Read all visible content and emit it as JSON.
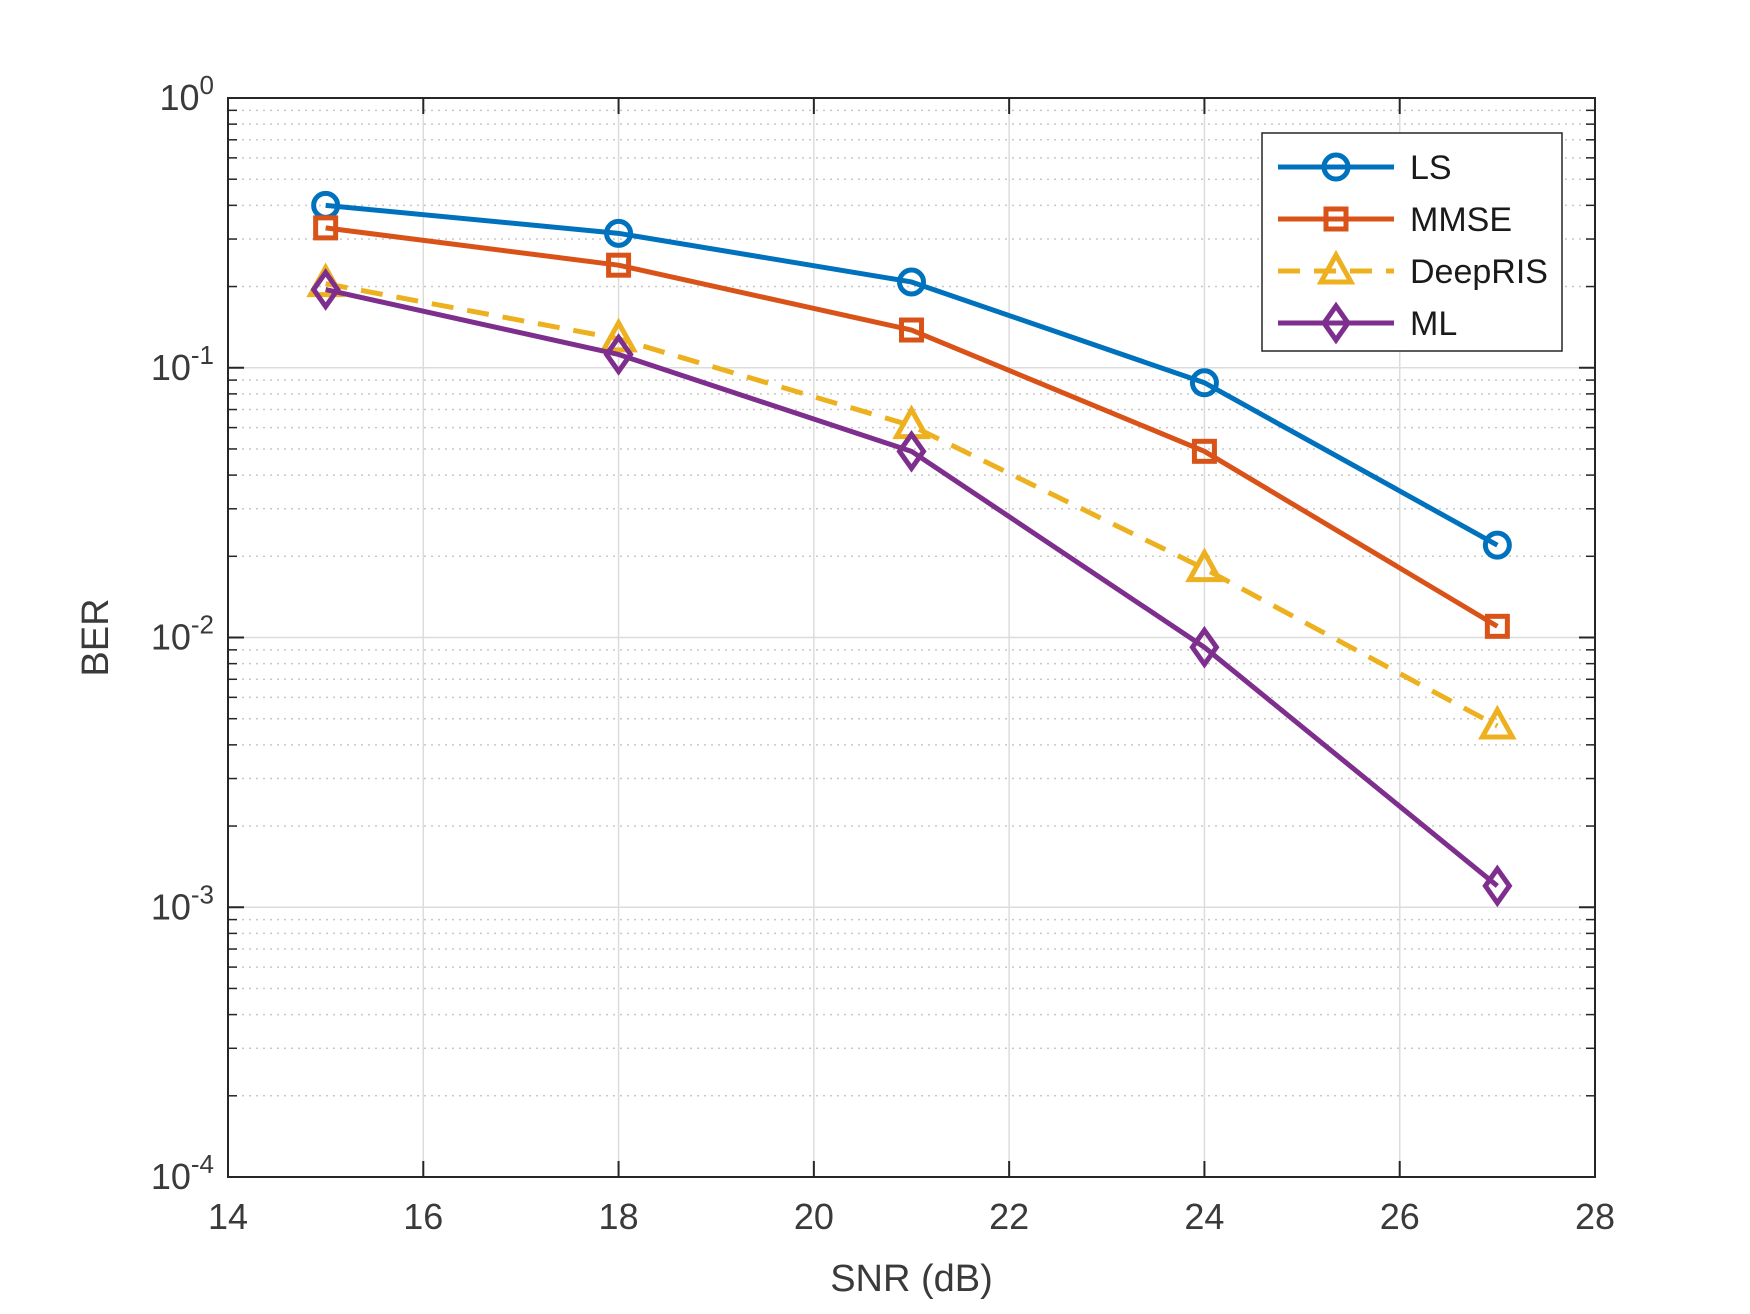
{
  "chart_data": {
    "type": "line",
    "title": "",
    "xlabel": "SNR (dB)",
    "ylabel": "BER",
    "yscale": "log",
    "xlim": [
      14,
      28
    ],
    "ylim": [
      0.0001,
      1
    ],
    "xticks": [
      14,
      16,
      18,
      20,
      22,
      24,
      26,
      28
    ],
    "yticks": [
      {
        "value": 0.0001,
        "base": "10",
        "exp": "-4"
      },
      {
        "value": 0.001,
        "base": "10",
        "exp": "-3"
      },
      {
        "value": 0.01,
        "base": "10",
        "exp": "-2"
      },
      {
        "value": 0.1,
        "base": "10",
        "exp": "-1"
      },
      {
        "value": 1,
        "base": "10",
        "exp": "0"
      }
    ],
    "grid": true,
    "minor_grid": true,
    "legend_position": "top-right",
    "x": [
      15,
      18,
      21,
      24,
      27
    ],
    "series": [
      {
        "name": "LS",
        "marker": "circle",
        "dash": "solid",
        "color": "#0072BD",
        "values": [
          0.4,
          0.315,
          0.208,
          0.088,
          0.022
        ]
      },
      {
        "name": "MMSE",
        "marker": "square",
        "dash": "solid",
        "color": "#D95319",
        "values": [
          0.33,
          0.24,
          0.138,
          0.049,
          0.011
        ]
      },
      {
        "name": "DeepRIS",
        "marker": "triangle",
        "dash": "dashed",
        "color": "#EDB120",
        "values": [
          0.205,
          0.128,
          0.061,
          0.018,
          0.0047
        ]
      },
      {
        "name": "ML",
        "marker": "diamond",
        "dash": "solid",
        "color": "#7E2F8E",
        "values": [
          0.195,
          0.112,
          0.049,
          0.0092,
          0.0012
        ]
      }
    ]
  }
}
